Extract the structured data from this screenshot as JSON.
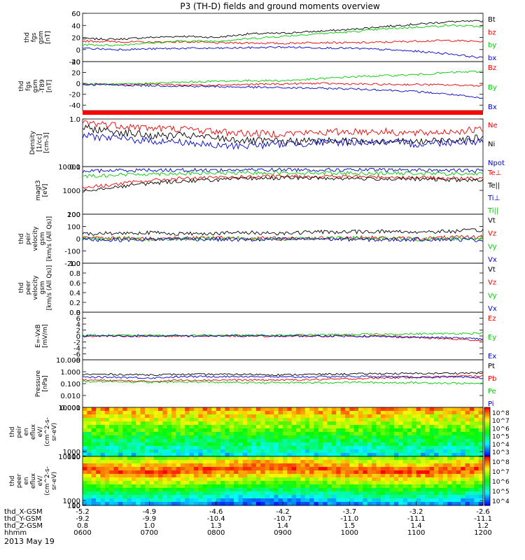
{
  "title": "P3 (TH-D) fields and ground moments overview",
  "date_label": "2013 May 19",
  "chart_data": [
    {
      "type": "line",
      "ylabel": [
        "thd",
        "fgs",
        "gsm",
        "[nT]"
      ],
      "ylim": [
        -20,
        60
      ],
      "yticks": [
        60,
        40,
        20,
        0,
        -20
      ],
      "series": [
        {
          "name": "Bt",
          "color": "#000000",
          "values": [
            18,
            17,
            20,
            22,
            20,
            26,
            27,
            30,
            33,
            38,
            42,
            46,
            47
          ]
        },
        {
          "name": "bz",
          "color": "#ee0000",
          "values": [
            14,
            13,
            12,
            13,
            11,
            11,
            10,
            12,
            11,
            12,
            14,
            15,
            13
          ]
        },
        {
          "name": "by",
          "color": "#00cc00",
          "values": [
            8,
            7,
            11,
            14,
            14,
            18,
            22,
            26,
            29,
            34,
            37,
            40,
            38
          ]
        },
        {
          "name": "bx",
          "color": "#0000cc",
          "values": [
            2,
            0,
            1,
            2,
            2,
            3,
            4,
            3,
            2,
            0,
            -3,
            -7,
            -14
          ]
        }
      ]
    },
    {
      "type": "line",
      "ylabel": [
        "thd",
        "fgs",
        "gsm",
        "-T89",
        "[nT]"
      ],
      "ylim": [
        -50,
        40
      ],
      "yticks": [
        40,
        20,
        0,
        -20,
        -40
      ],
      "series": [
        {
          "name": "Bz",
          "color": "#ee0000",
          "values": [
            -1,
            -2,
            -1,
            -3,
            -3,
            -2,
            -1,
            0,
            -1,
            -2,
            -2,
            -3,
            -4
          ]
        },
        {
          "name": "By",
          "color": "#00cc00",
          "values": [
            -1,
            -2,
            0,
            2,
            4,
            5,
            5,
            8,
            12,
            14,
            16,
            20,
            22
          ]
        },
        {
          "name": "Bx",
          "color": "#0000cc",
          "values": [
            -2,
            -3,
            -4,
            -5,
            -6,
            -7,
            -8,
            -9,
            -10,
            -12,
            -15,
            -20,
            -28
          ]
        }
      ]
    },
    {
      "type": "line",
      "log": true,
      "ylabel": [
        "Density",
        "[1/cc]",
        "[cm-3]"
      ],
      "ylim": [
        0.1,
        1.0
      ],
      "yticks": [
        1.0,
        0.1
      ],
      "series": [
        {
          "name": "Ne",
          "color": "#ee0000",
          "values": [
            0.85,
            0.75,
            0.65,
            0.62,
            0.55,
            0.5,
            0.5,
            0.52,
            0.55,
            0.55,
            0.5,
            0.55,
            0.6
          ]
        },
        {
          "name": "Ni",
          "color": "#000000",
          "values": [
            0.65,
            0.55,
            0.45,
            0.45,
            0.4,
            0.35,
            0.34,
            0.35,
            0.35,
            0.35,
            0.33,
            0.37,
            0.4
          ]
        },
        {
          "name": "Npot",
          "color": "#0000cc",
          "values": [
            0.45,
            0.4,
            0.35,
            0.33,
            0.27,
            0.28,
            0.3,
            0.32,
            0.33,
            0.33,
            0.3,
            0.33,
            0.35
          ]
        }
      ]
    },
    {
      "type": "line",
      "log": true,
      "ylabel": [
        "magt3",
        "[eV]"
      ],
      "ylim": [
        100,
        10000
      ],
      "yticks": [
        10000,
        1000,
        100
      ],
      "series": [
        {
          "name": "Te⊥",
          "color": "#ee0000",
          "values": [
            1300,
            1800,
            2600,
            3200,
            3400,
            3700,
            3900,
            3900,
            3800,
            3700,
            3500,
            3300,
            3100
          ]
        },
        {
          "name": "Te||",
          "color": "#000000",
          "values": [
            1000,
            1400,
            2000,
            2500,
            2800,
            3200,
            3400,
            3300,
            3200,
            3100,
            3000,
            2800,
            2600
          ]
        },
        {
          "name": "Ti⊥",
          "color": "#0000cc",
          "values": [
            6500,
            7000,
            7200,
            7200,
            7100,
            7300,
            7500,
            7400,
            7300,
            7300,
            7200,
            7000,
            6800
          ]
        },
        {
          "name": "Ti||",
          "color": "#00cc00",
          "values": [
            4000,
            4500,
            5000,
            5200,
            5300,
            5500,
            5600,
            5500,
            5400,
            5300,
            5200,
            5000,
            4900
          ]
        }
      ]
    },
    {
      "type": "line",
      "ylabel": [
        "thd",
        "peir",
        "velocity",
        "gsm",
        "[km/s (All Qs)]"
      ],
      "ylim": [
        -200,
        200
      ],
      "yticks": [
        200,
        100,
        0,
        -100,
        -200
      ],
      "series": [
        {
          "name": "Vt",
          "color": "#000000",
          "values": [
            40,
            45,
            50,
            40,
            45,
            50,
            45,
            55,
            55,
            60,
            55,
            60,
            70
          ]
        },
        {
          "name": "Vz",
          "color": "#ee0000",
          "values": [
            10,
            5,
            0,
            5,
            10,
            5,
            0,
            5,
            10,
            5,
            0,
            10,
            15
          ]
        },
        {
          "name": "Vy",
          "color": "#00cc00",
          "values": [
            5,
            0,
            -5,
            0,
            5,
            0,
            -5,
            0,
            5,
            0,
            -5,
            0,
            5
          ]
        },
        {
          "name": "Vx",
          "color": "#0000cc",
          "values": [
            -5,
            -10,
            -5,
            0,
            -5,
            -10,
            -5,
            0,
            -5,
            -10,
            -5,
            -5,
            -10
          ]
        }
      ]
    },
    {
      "type": "line",
      "ylabel": [
        "thd",
        "peer",
        "velocity",
        "gsm",
        "[km/s (All Qs)]"
      ],
      "ylim": [
        0,
        1.0
      ],
      "yticks": [
        1.0,
        0.8,
        0.6,
        0.4,
        0.2,
        0.0
      ],
      "series": [
        {
          "name": "Vt",
          "color": "#000000",
          "values": []
        },
        {
          "name": "Vz",
          "color": "#ee0000",
          "values": []
        },
        {
          "name": "Vy",
          "color": "#00cc00",
          "values": []
        },
        {
          "name": "Vx",
          "color": "#0000cc",
          "values": []
        }
      ]
    },
    {
      "type": "line",
      "ylabel": [
        "E=-VxB",
        "[mV/m]"
      ],
      "ylim": [
        -8,
        8
      ],
      "yticks": [
        8,
        6,
        4,
        2,
        0,
        -2,
        -4,
        -6,
        -8
      ],
      "series": [
        {
          "name": "Ez",
          "color": "#ee0000",
          "values": [
            0,
            0,
            0,
            0,
            0,
            0,
            0,
            0,
            0,
            0,
            -0.5,
            -1,
            -1.5
          ]
        },
        {
          "name": "Ey",
          "color": "#00cc00",
          "values": [
            0.3,
            0.2,
            0.3,
            0.2,
            0.3,
            0.2,
            0.3,
            0.4,
            0.5,
            0.6,
            0.7,
            0.8,
            1
          ]
        },
        {
          "name": "Ex",
          "color": "#0000cc",
          "values": [
            0,
            0,
            0,
            0,
            0,
            0,
            0,
            0,
            0,
            -0.2,
            -0.4,
            -0.6,
            -1
          ]
        }
      ]
    },
    {
      "type": "line",
      "log": true,
      "ylabel": [
        "Pressure",
        "[nPa]"
      ],
      "ylim": [
        0.001,
        10
      ],
      "yticks": [
        10.0,
        1.0,
        0.1,
        0.01,
        0.001
      ],
      "series": [
        {
          "name": "Pt",
          "color": "#000000",
          "values": [
            0.6,
            0.6,
            0.55,
            0.6,
            0.6,
            0.6,
            0.55,
            0.6,
            0.65,
            0.7,
            0.7,
            0.75,
            0.8
          ]
        },
        {
          "name": "Pb",
          "color": "#ee0000",
          "values": [
            0.2,
            0.18,
            0.15,
            0.2,
            0.2,
            0.2,
            0.2,
            0.22,
            0.25,
            0.3,
            0.35,
            0.4,
            0.45
          ]
        },
        {
          "name": "Pe",
          "color": "#00cc00",
          "values": [
            0.15,
            0.15,
            0.13,
            0.14,
            0.13,
            0.12,
            0.12,
            0.12,
            0.13,
            0.12,
            0.12,
            0.11,
            0.1
          ]
        },
        {
          "name": "Pi",
          "color": "#0000cc",
          "values": [
            0.35,
            0.35,
            0.3,
            0.38,
            0.4,
            0.4,
            0.35,
            0.38,
            0.4,
            0.4,
            0.35,
            0.35,
            0.3
          ]
        }
      ]
    },
    {
      "type": "heatmap",
      "ylabel": [
        "thd",
        "peir",
        "en",
        "eflux",
        "eV/",
        "(cm^2-s-",
        "sr-eV)"
      ],
      "ylim": [
        10,
        10000
      ],
      "yticks": [
        10000,
        1000,
        100,
        10
      ],
      "colorbar": {
        "range": [
          1000,
          100000000
        ],
        "ticks": [
          "10^8",
          "10^7",
          "10^6",
          "10^5",
          "10^4",
          "10^3"
        ]
      }
    },
    {
      "type": "heatmap",
      "ylabel": [
        "thd",
        "peer",
        "en",
        "eflux",
        "eV/",
        "(cm^2-s-",
        "sr-eV)"
      ],
      "ylim": [
        10,
        10000
      ],
      "yticks": [
        10000,
        1000,
        100,
        10
      ],
      "colorbar": {
        "range": [
          10000,
          100000000
        ],
        "ticks": [
          "10^8",
          "10^7",
          "10^6",
          "10^5",
          "10^4"
        ]
      }
    }
  ],
  "xaxis": {
    "rows": [
      {
        "label": "thd_X-GSM",
        "values": [
          "-5.2",
          "-4.9",
          "-4.6",
          "-4.2",
          "-3.7",
          "-3.2",
          "-2.6"
        ]
      },
      {
        "label": "thd_Y-GSM",
        "values": [
          "-9.2",
          "-9.9",
          "-10.4",
          "-10.7",
          "-11.0",
          "-11.1",
          "-11.1"
        ]
      },
      {
        "label": "thd_Z-GSM",
        "values": [
          "0.8",
          "1.0",
          "1.3",
          "1.4",
          "1.5",
          "1.4",
          "1.2"
        ]
      },
      {
        "label": "hhmm",
        "values": [
          "0600",
          "0700",
          "0800",
          "0900",
          "1000",
          "1100",
          "1200"
        ]
      }
    ]
  }
}
